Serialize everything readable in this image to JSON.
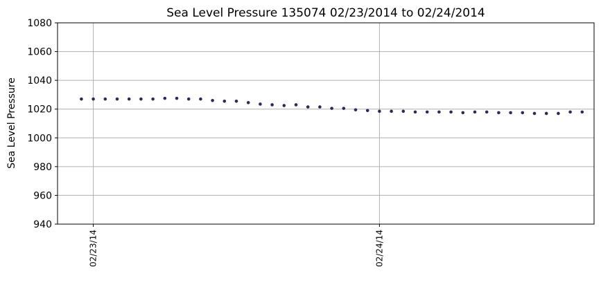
{
  "chart_data": {
    "type": "scatter",
    "title": "Sea Level Pressure 135074  02/23/2014 to 02/24/2014",
    "xlabel": "",
    "ylabel": "Sea Level Pressure",
    "ylim": [
      940,
      1080
    ],
    "xlim_hours": [
      -3,
      42
    ],
    "grid": true,
    "marker_color": "#2e2a58",
    "x_ticks": [
      {
        "hour": 0,
        "label": "02/23/14"
      },
      {
        "hour": 24,
        "label": "02/24/14"
      }
    ],
    "y_ticks": [
      940,
      960,
      980,
      1000,
      1020,
      1040,
      1060,
      1080
    ],
    "series": [
      {
        "x_hours": [
          -1,
          0,
          1,
          2,
          3,
          4,
          5,
          6,
          7,
          8,
          9,
          10,
          11,
          12,
          13,
          14,
          15,
          16,
          17,
          18,
          19,
          20,
          21,
          22,
          23,
          24,
          25,
          26,
          27,
          28,
          29,
          30,
          31,
          32,
          33,
          34,
          35,
          36,
          37,
          38,
          39,
          40,
          41
        ],
        "values": [
          1027.0,
          1027.0,
          1027.0,
          1027.0,
          1027.0,
          1027.0,
          1027.0,
          1027.5,
          1027.5,
          1027.0,
          1027.0,
          1026.0,
          1025.5,
          1025.5,
          1024.5,
          1023.5,
          1023.0,
          1022.5,
          1023.0,
          1021.5,
          1021.5,
          1020.5,
          1020.5,
          1019.5,
          1019.0,
          1018.5,
          1018.5,
          1018.5,
          1018.0,
          1018.0,
          1018.0,
          1018.0,
          1017.5,
          1018.0,
          1018.0,
          1017.5,
          1017.5,
          1017.5,
          1017.0,
          1017.0,
          1017.0,
          1018.0,
          1018.0
        ]
      }
    ]
  }
}
